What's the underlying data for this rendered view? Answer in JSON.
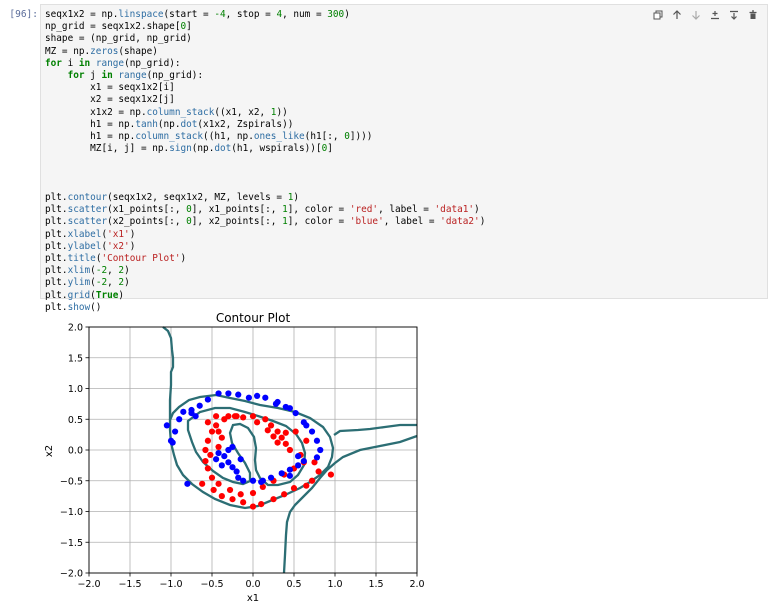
{
  "cell": {
    "prompt": "[96]:",
    "code_lines": [
      [
        {
          "t": "seqx1x2 = np."
        },
        {
          "t": "linspace",
          "c": "fn"
        },
        {
          "t": "(start = "
        },
        {
          "t": "-4",
          "c": "num"
        },
        {
          "t": ", stop = "
        },
        {
          "t": "4",
          "c": "num"
        },
        {
          "t": ", num = "
        },
        {
          "t": "300",
          "c": "num"
        },
        {
          "t": ")"
        }
      ],
      [
        {
          "t": "np_grid = seqx1x2.shape["
        },
        {
          "t": "0",
          "c": "num"
        },
        {
          "t": "]"
        }
      ],
      [
        {
          "t": "shape = (np_grid, np_grid)"
        }
      ],
      [
        {
          "t": "MZ = np."
        },
        {
          "t": "zeros",
          "c": "fn"
        },
        {
          "t": "(shape)"
        }
      ],
      [
        {
          "t": "for",
          "c": "kw"
        },
        {
          "t": " i "
        },
        {
          "t": "in",
          "c": "kw"
        },
        {
          "t": " "
        },
        {
          "t": "range",
          "c": "fn"
        },
        {
          "t": "(np_grid):"
        }
      ],
      [
        {
          "t": "    "
        },
        {
          "t": "for",
          "c": "kw"
        },
        {
          "t": " j "
        },
        {
          "t": "in",
          "c": "kw"
        },
        {
          "t": " "
        },
        {
          "t": "range",
          "c": "fn"
        },
        {
          "t": "(np_grid):"
        }
      ],
      [
        {
          "t": "        x1 = seqx1x2[i]"
        }
      ],
      [
        {
          "t": "        x2 = seqx1x2[j]"
        }
      ],
      [
        {
          "t": "        x1x2 = np."
        },
        {
          "t": "column_stack",
          "c": "fn"
        },
        {
          "t": "((x1, x2, "
        },
        {
          "t": "1",
          "c": "num"
        },
        {
          "t": "))"
        }
      ],
      [
        {
          "t": "        h1 = np."
        },
        {
          "t": "tanh",
          "c": "fn"
        },
        {
          "t": "(np."
        },
        {
          "t": "dot",
          "c": "fn"
        },
        {
          "t": "(x1x2, Zspirals))"
        }
      ],
      [
        {
          "t": "        h1 = np."
        },
        {
          "t": "column_stack",
          "c": "fn"
        },
        {
          "t": "((h1, np."
        },
        {
          "t": "ones_like",
          "c": "fn"
        },
        {
          "t": "(h1[:, "
        },
        {
          "t": "0",
          "c": "num"
        },
        {
          "t": "])))"
        }
      ],
      [
        {
          "t": "        MZ[i, j] = np."
        },
        {
          "t": "sign",
          "c": "fn"
        },
        {
          "t": "(np."
        },
        {
          "t": "dot",
          "c": "fn"
        },
        {
          "t": "(h1, wspirals))["
        },
        {
          "t": "0",
          "c": "num"
        },
        {
          "t": "]"
        }
      ],
      [
        {
          "t": ""
        }
      ],
      [
        {
          "t": ""
        }
      ],
      [
        {
          "t": ""
        }
      ],
      [
        {
          "t": "plt."
        },
        {
          "t": "contour",
          "c": "fn"
        },
        {
          "t": "(seqx1x2, seqx1x2, MZ, levels = "
        },
        {
          "t": "1",
          "c": "num"
        },
        {
          "t": ")"
        }
      ],
      [
        {
          "t": "plt."
        },
        {
          "t": "scatter",
          "c": "fn"
        },
        {
          "t": "(x1_points[:, "
        },
        {
          "t": "0",
          "c": "num"
        },
        {
          "t": "], x1_points[:, "
        },
        {
          "t": "1",
          "c": "num"
        },
        {
          "t": "], color = "
        },
        {
          "t": "'red'",
          "c": "str"
        },
        {
          "t": ", label = "
        },
        {
          "t": "'data1'",
          "c": "str"
        },
        {
          "t": ")"
        }
      ],
      [
        {
          "t": "plt."
        },
        {
          "t": "scatter",
          "c": "fn"
        },
        {
          "t": "(x2_points[:, "
        },
        {
          "t": "0",
          "c": "num"
        },
        {
          "t": "], x2_points[:, "
        },
        {
          "t": "1",
          "c": "num"
        },
        {
          "t": "], color = "
        },
        {
          "t": "'blue'",
          "c": "str"
        },
        {
          "t": ", label = "
        },
        {
          "t": "'data2'",
          "c": "str"
        },
        {
          "t": ")"
        }
      ],
      [
        {
          "t": "plt."
        },
        {
          "t": "xlabel",
          "c": "fn"
        },
        {
          "t": "("
        },
        {
          "t": "'x1'",
          "c": "str"
        },
        {
          "t": ")"
        }
      ],
      [
        {
          "t": "plt."
        },
        {
          "t": "ylabel",
          "c": "fn"
        },
        {
          "t": "("
        },
        {
          "t": "'x2'",
          "c": "str"
        },
        {
          "t": ")"
        }
      ],
      [
        {
          "t": "plt."
        },
        {
          "t": "title",
          "c": "fn"
        },
        {
          "t": "("
        },
        {
          "t": "'Contour Plot'",
          "c": "str"
        },
        {
          "t": ")"
        }
      ],
      [
        {
          "t": "plt."
        },
        {
          "t": "xlim",
          "c": "fn"
        },
        {
          "t": "("
        },
        {
          "t": "-2",
          "c": "num"
        },
        {
          "t": ", "
        },
        {
          "t": "2",
          "c": "num"
        },
        {
          "t": ")"
        }
      ],
      [
        {
          "t": "plt."
        },
        {
          "t": "ylim",
          "c": "fn"
        },
        {
          "t": "("
        },
        {
          "t": "-2",
          "c": "num"
        },
        {
          "t": ", "
        },
        {
          "t": "2",
          "c": "num"
        },
        {
          "t": ")"
        }
      ],
      [
        {
          "t": "plt."
        },
        {
          "t": "grid",
          "c": "fn"
        },
        {
          "t": "("
        },
        {
          "t": "True",
          "c": "kw"
        },
        {
          "t": ")"
        }
      ],
      [
        {
          "t": "plt."
        },
        {
          "t": "show",
          "c": "fn"
        },
        {
          "t": "()"
        }
      ]
    ]
  },
  "toolbar": {
    "icons": [
      "copy-icon",
      "move-up-icon",
      "move-down-icon",
      "insert-below-icon",
      "merge-icon",
      "delete-icon"
    ]
  },
  "chart_data": {
    "type": "scatter",
    "title": "Contour Plot",
    "xlabel": "x1",
    "ylabel": "x2",
    "xlim": [
      -2,
      2
    ],
    "ylim": [
      -2,
      2
    ],
    "xticks": [
      "−2.0",
      "−1.5",
      "−1.0",
      "−0.5",
      "0.0",
      "0.5",
      "1.0",
      "1.5",
      "2.0"
    ],
    "yticks": [
      "−2.0",
      "−1.5",
      "−1.0",
      "−0.5",
      "0.0",
      "0.5",
      "1.0",
      "1.5",
      "2.0"
    ],
    "grid": true,
    "series": [
      {
        "color": "#ff0000",
        "points": [
          [
            0.0,
            0.55
          ],
          [
            0.15,
            0.5
          ],
          [
            0.22,
            0.4
          ],
          [
            0.3,
            0.3
          ],
          [
            0.35,
            0.2
          ],
          [
            0.4,
            0.1
          ],
          [
            0.45,
            0.0
          ],
          [
            0.58,
            -0.08
          ],
          [
            0.62,
            -0.2
          ],
          [
            0.5,
            -0.3
          ],
          [
            0.38,
            -0.4
          ],
          [
            0.25,
            -0.5
          ],
          [
            0.12,
            -0.6
          ],
          [
            0.0,
            -0.7
          ],
          [
            -0.15,
            -0.72
          ],
          [
            -0.28,
            -0.65
          ],
          [
            -0.42,
            -0.55
          ],
          [
            -0.5,
            -0.45
          ],
          [
            -0.55,
            -0.3
          ],
          [
            -0.58,
            -0.18
          ],
          [
            -0.52,
            -0.08
          ],
          [
            -0.42,
            0.05
          ],
          [
            -0.38,
            0.2
          ],
          [
            -0.42,
            0.3
          ],
          [
            -0.45,
            0.4
          ],
          [
            -0.35,
            0.5
          ],
          [
            -0.22,
            0.55
          ],
          [
            -0.12,
            0.53
          ],
          [
            0.05,
            0.45
          ],
          [
            0.18,
            0.32
          ],
          [
            0.25,
            0.22
          ],
          [
            0.3,
            0.12
          ],
          [
            0.75,
            -0.2
          ],
          [
            0.8,
            -0.35
          ],
          [
            0.72,
            -0.5
          ],
          [
            0.65,
            -0.58
          ],
          [
            0.5,
            -0.62
          ],
          [
            0.38,
            -0.72
          ],
          [
            0.25,
            -0.8
          ],
          [
            0.1,
            -0.88
          ],
          [
            0.0,
            -0.92
          ],
          [
            -0.12,
            -0.85
          ],
          [
            -0.25,
            -0.8
          ],
          [
            -0.38,
            -0.75
          ],
          [
            -0.48,
            -0.65
          ],
          [
            -0.62,
            -0.55
          ],
          [
            -0.58,
            0.0
          ],
          [
            -0.55,
            0.15
          ],
          [
            -0.5,
            0.3
          ],
          [
            -0.55,
            0.45
          ],
          [
            -0.45,
            0.55
          ],
          [
            -0.3,
            0.55
          ],
          [
            -0.2,
            0.55
          ],
          [
            0.4,
            0.28
          ],
          [
            0.52,
            0.3
          ],
          [
            0.65,
            0.15
          ],
          [
            0.95,
            -0.4
          ]
        ]
      },
      {
        "color": "#0000ff",
        "points": [
          [
            -1.0,
            0.15
          ],
          [
            -0.95,
            0.3
          ],
          [
            -0.9,
            0.5
          ],
          [
            -0.85,
            0.62
          ],
          [
            -0.75,
            0.65
          ],
          [
            -0.65,
            0.72
          ],
          [
            -0.55,
            0.82
          ],
          [
            -0.42,
            0.92
          ],
          [
            -0.3,
            0.92
          ],
          [
            -0.18,
            0.9
          ],
          [
            -0.05,
            0.85
          ],
          [
            0.05,
            0.88
          ],
          [
            0.15,
            0.85
          ],
          [
            0.28,
            0.75
          ],
          [
            0.4,
            0.7
          ],
          [
            0.52,
            0.6
          ],
          [
            0.62,
            0.45
          ],
          [
            0.72,
            0.3
          ],
          [
            0.78,
            0.15
          ],
          [
            0.82,
            0.0
          ],
          [
            0.78,
            -0.12
          ],
          [
            0.62,
            -0.18
          ],
          [
            0.55,
            -0.25
          ],
          [
            0.45,
            -0.32
          ],
          [
            0.35,
            -0.38
          ],
          [
            0.22,
            -0.45
          ],
          [
            0.12,
            -0.5
          ],
          [
            0.0,
            -0.5
          ],
          [
            -0.12,
            -0.5
          ],
          [
            -0.18,
            -0.45
          ],
          [
            -0.2,
            -0.35
          ],
          [
            -0.25,
            -0.28
          ],
          [
            -0.3,
            -0.2
          ],
          [
            -0.35,
            -0.1
          ],
          [
            -0.3,
            0.0
          ],
          [
            -0.25,
            0.05
          ],
          [
            -0.42,
            -0.05
          ],
          [
            -0.45,
            -0.15
          ],
          [
            -0.38,
            -0.25
          ],
          [
            -0.15,
            -0.15
          ],
          [
            -0.8,
            -0.55
          ],
          [
            -0.75,
            0.6
          ],
          [
            -1.05,
            0.4
          ],
          [
            -0.98,
            0.12
          ],
          [
            -0.7,
            0.55
          ],
          [
            0.3,
            0.78
          ],
          [
            0.45,
            0.68
          ],
          [
            0.65,
            0.4
          ],
          [
            0.55,
            -0.1
          ],
          [
            0.45,
            -0.42
          ],
          [
            0.1,
            -0.52
          ]
        ]
      }
    ]
  }
}
